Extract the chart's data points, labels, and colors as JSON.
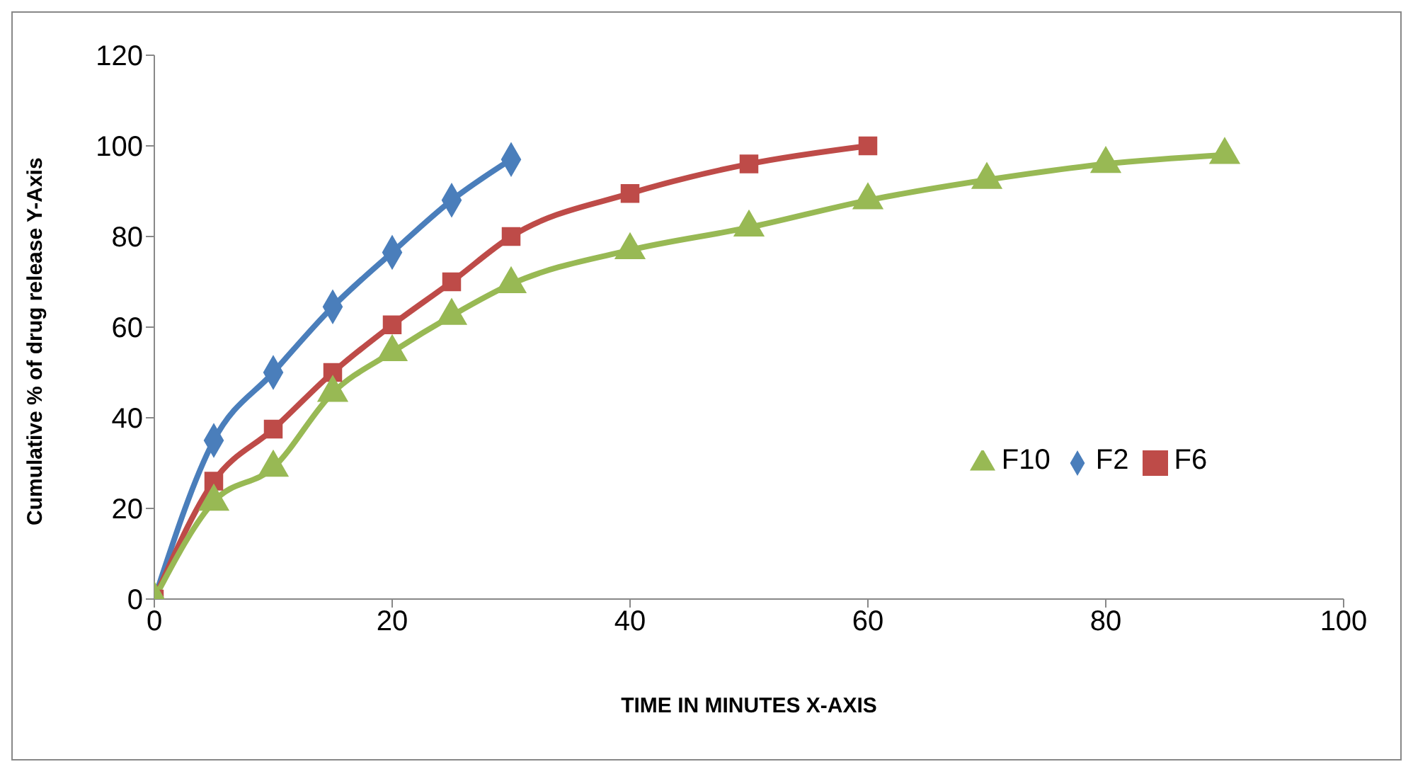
{
  "chart_data": {
    "type": "line",
    "xlabel": "TIME IN MINUTES X-AXIS",
    "ylabel": "Cumulative % of drug release Y-Axis",
    "xlim": [
      0,
      100
    ],
    "xticks": [
      0,
      20,
      40,
      60,
      80,
      100
    ],
    "ylim": [
      0,
      120
    ],
    "yticks": [
      0,
      20,
      40,
      60,
      80,
      100,
      120
    ],
    "grid": false,
    "legend": "right",
    "series": [
      {
        "name": "F2",
        "color": "#4a7ebb",
        "marker": "diamond",
        "x": [
          0,
          5,
          10,
          15,
          20,
          25,
          30
        ],
        "values": [
          0,
          35,
          50,
          64.5,
          76.5,
          88,
          97
        ]
      },
      {
        "name": "F6",
        "color": "#be4b48",
        "marker": "square",
        "x": [
          0,
          5,
          10,
          15,
          20,
          25,
          30,
          40,
          50,
          60
        ],
        "values": [
          0,
          26,
          37.5,
          50,
          60.5,
          70,
          80,
          89.5,
          96,
          100
        ]
      },
      {
        "name": "F10",
        "color": "#98b954",
        "marker": "triangle",
        "x": [
          0,
          5,
          10,
          15,
          20,
          25,
          30,
          40,
          50,
          60,
          70,
          80,
          90
        ],
        "values": [
          0,
          21.5,
          29,
          45.5,
          54.5,
          62.5,
          69.5,
          77,
          82,
          88,
          92.5,
          96,
          98
        ]
      }
    ]
  }
}
